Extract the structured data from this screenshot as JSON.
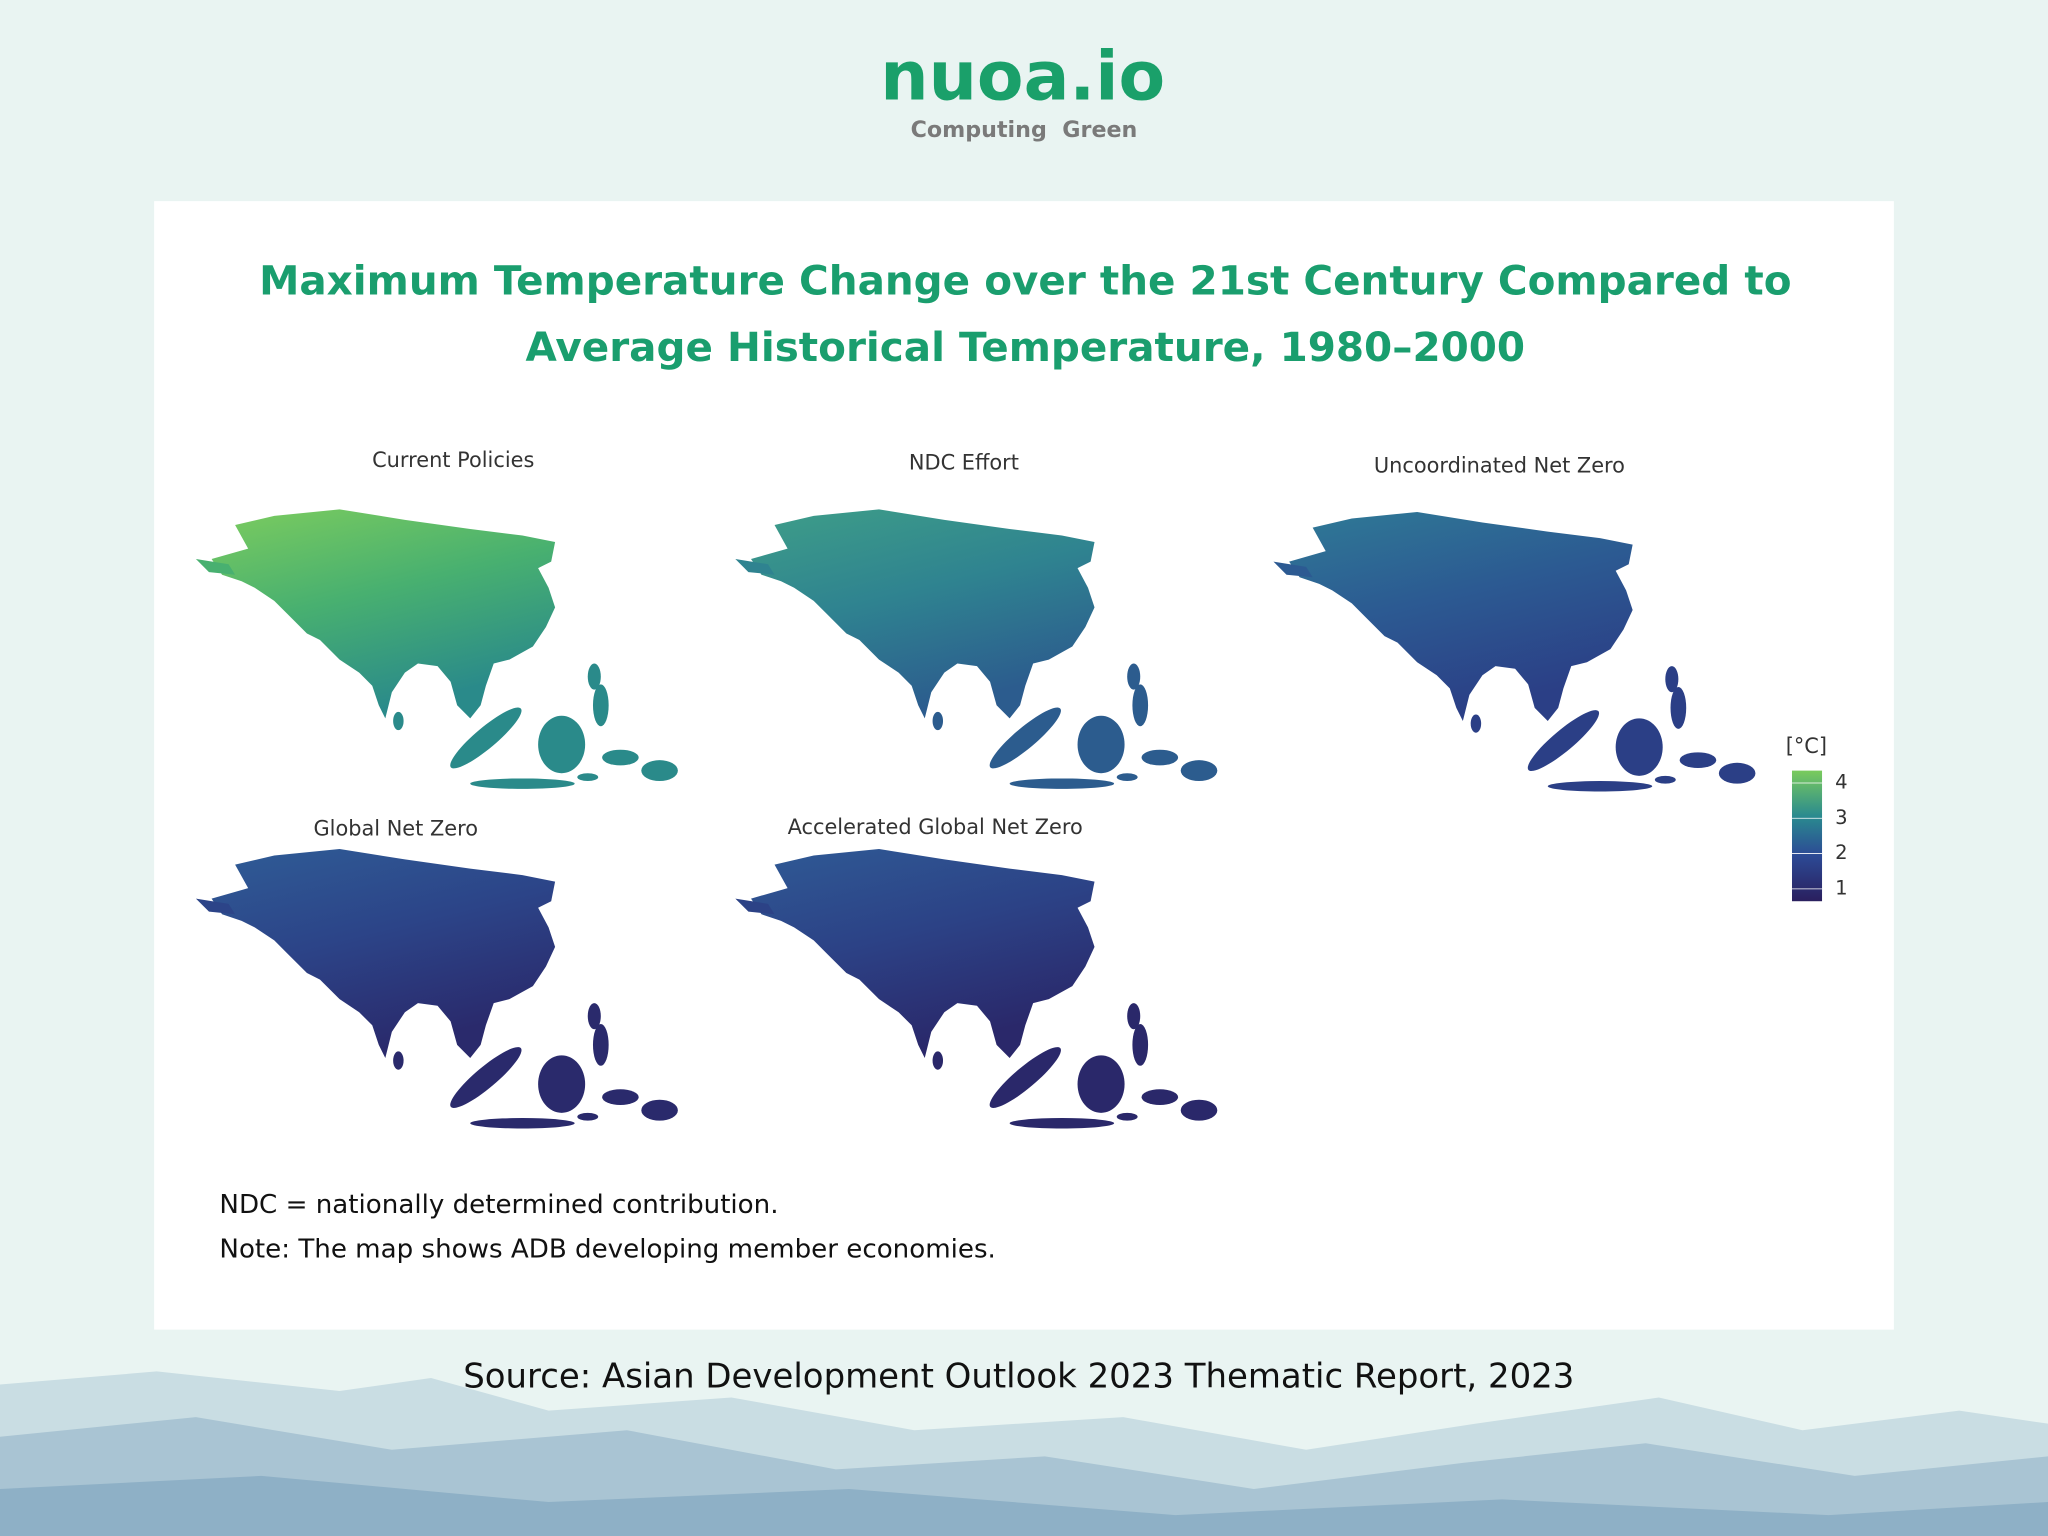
{
  "header": {
    "logo": "nuoa.io",
    "tagline": "Computing  Green"
  },
  "title_lines": [
    "Maximum Temperature Change over the 21st Century Compared to",
    "Average Historical Temperature, 1980–2000"
  ],
  "maps": [
    {
      "title": "Current Policies"
    },
    {
      "title": "NDC Effort"
    },
    {
      "title": "Uncoordinated Net Zero"
    },
    {
      "title": "Global Net Zero"
    },
    {
      "title": "Accelerated Global Net Zero"
    }
  ],
  "legend": {
    "unit": "[°C]",
    "ticks": [
      1,
      2,
      3,
      4
    ],
    "lim": [
      0.65,
      4.35
    ]
  },
  "notes": [
    "NDC = nationally determined contribution.",
    "Note: The map shows ADB developing member economies."
  ],
  "source": "Source: Asian Development Outlook 2023 Thematic Report, 2023"
}
